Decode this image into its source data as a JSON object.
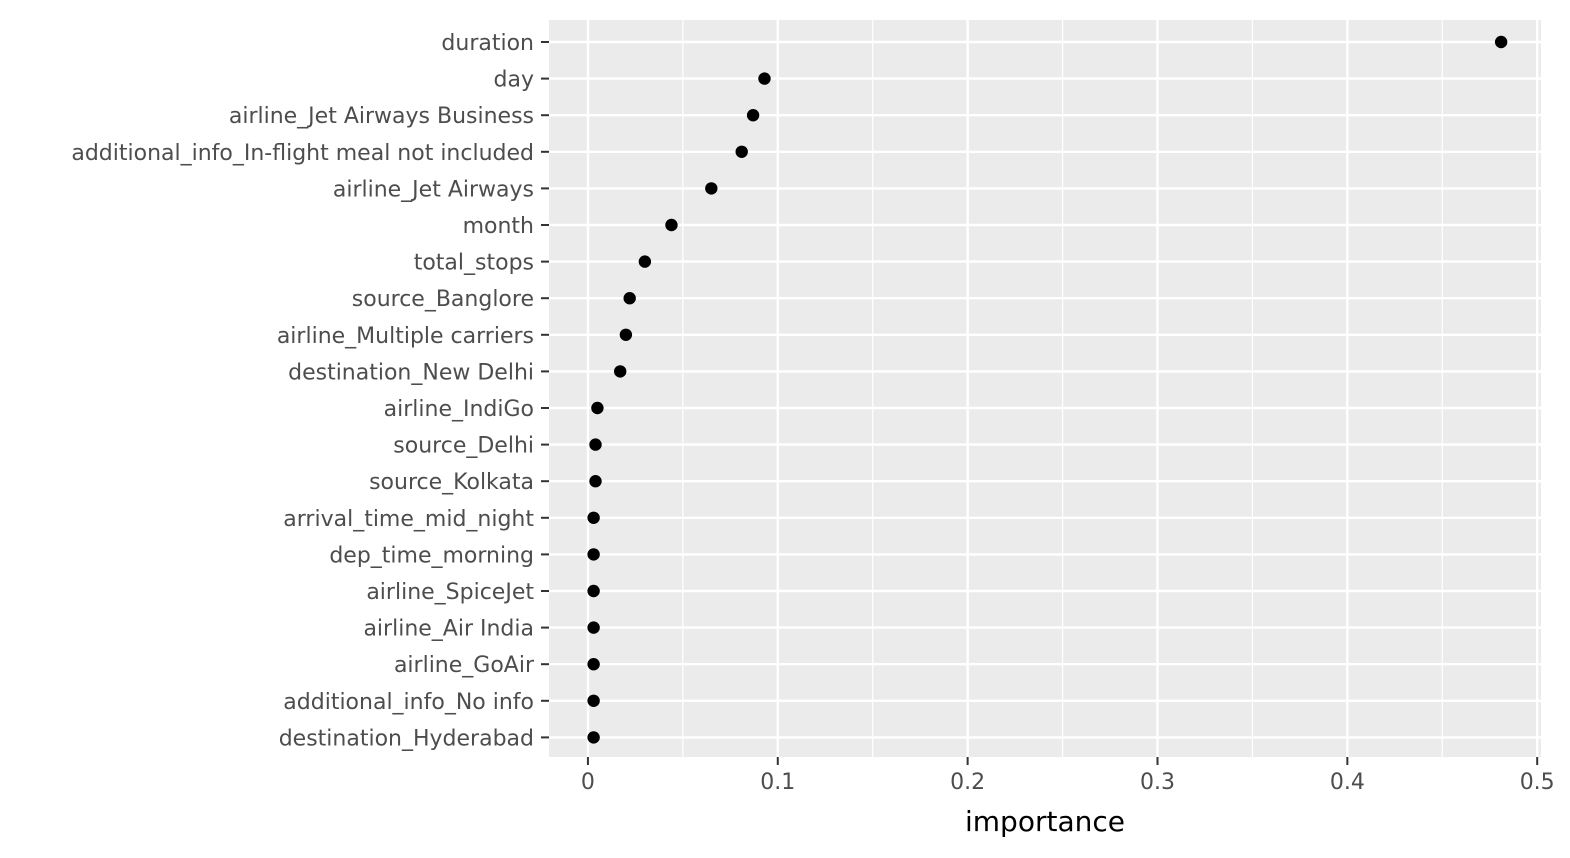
{
  "chart_data": {
    "type": "scatter",
    "title": "",
    "xlabel": "importance",
    "ylabel": "",
    "xlim": [
      -0.0205,
      0.502
    ],
    "x_ticks": [
      0,
      0.1,
      0.2,
      0.3,
      0.4,
      0.5
    ],
    "x_tick_labels": [
      "0",
      "0.1",
      "0.2",
      "0.3",
      "0.4",
      "0.5"
    ],
    "x_minor_ticks": [
      0.05,
      0.15,
      0.25,
      0.35,
      0.45
    ],
    "grid": true,
    "legend": "none",
    "point_color": "#000000",
    "panel_color": "#ebebeb",
    "grid_color": "#ffffff",
    "points": [
      {
        "feature": "duration",
        "importance": 0.481
      },
      {
        "feature": "day",
        "importance": 0.093
      },
      {
        "feature": "airline_Jet Airways Business",
        "importance": 0.087
      },
      {
        "feature": "additional_info_In-flight meal not included",
        "importance": 0.081
      },
      {
        "feature": "airline_Jet Airways",
        "importance": 0.065
      },
      {
        "feature": "month",
        "importance": 0.044
      },
      {
        "feature": "total_stops",
        "importance": 0.03
      },
      {
        "feature": "source_Banglore",
        "importance": 0.022
      },
      {
        "feature": "airline_Multiple carriers",
        "importance": 0.02
      },
      {
        "feature": "destination_New Delhi",
        "importance": 0.017
      },
      {
        "feature": "airline_IndiGo",
        "importance": 0.005
      },
      {
        "feature": "source_Delhi",
        "importance": 0.004
      },
      {
        "feature": "source_Kolkata",
        "importance": 0.004
      },
      {
        "feature": "arrival_time_mid_night",
        "importance": 0.003
      },
      {
        "feature": "dep_time_morning",
        "importance": 0.003
      },
      {
        "feature": "airline_SpiceJet",
        "importance": 0.003
      },
      {
        "feature": "airline_Air India",
        "importance": 0.003
      },
      {
        "feature": "airline_GoAir",
        "importance": 0.003
      },
      {
        "feature": "additional_info_No info",
        "importance": 0.003
      },
      {
        "feature": "destination_Hyderabad",
        "importance": 0.003
      }
    ]
  }
}
